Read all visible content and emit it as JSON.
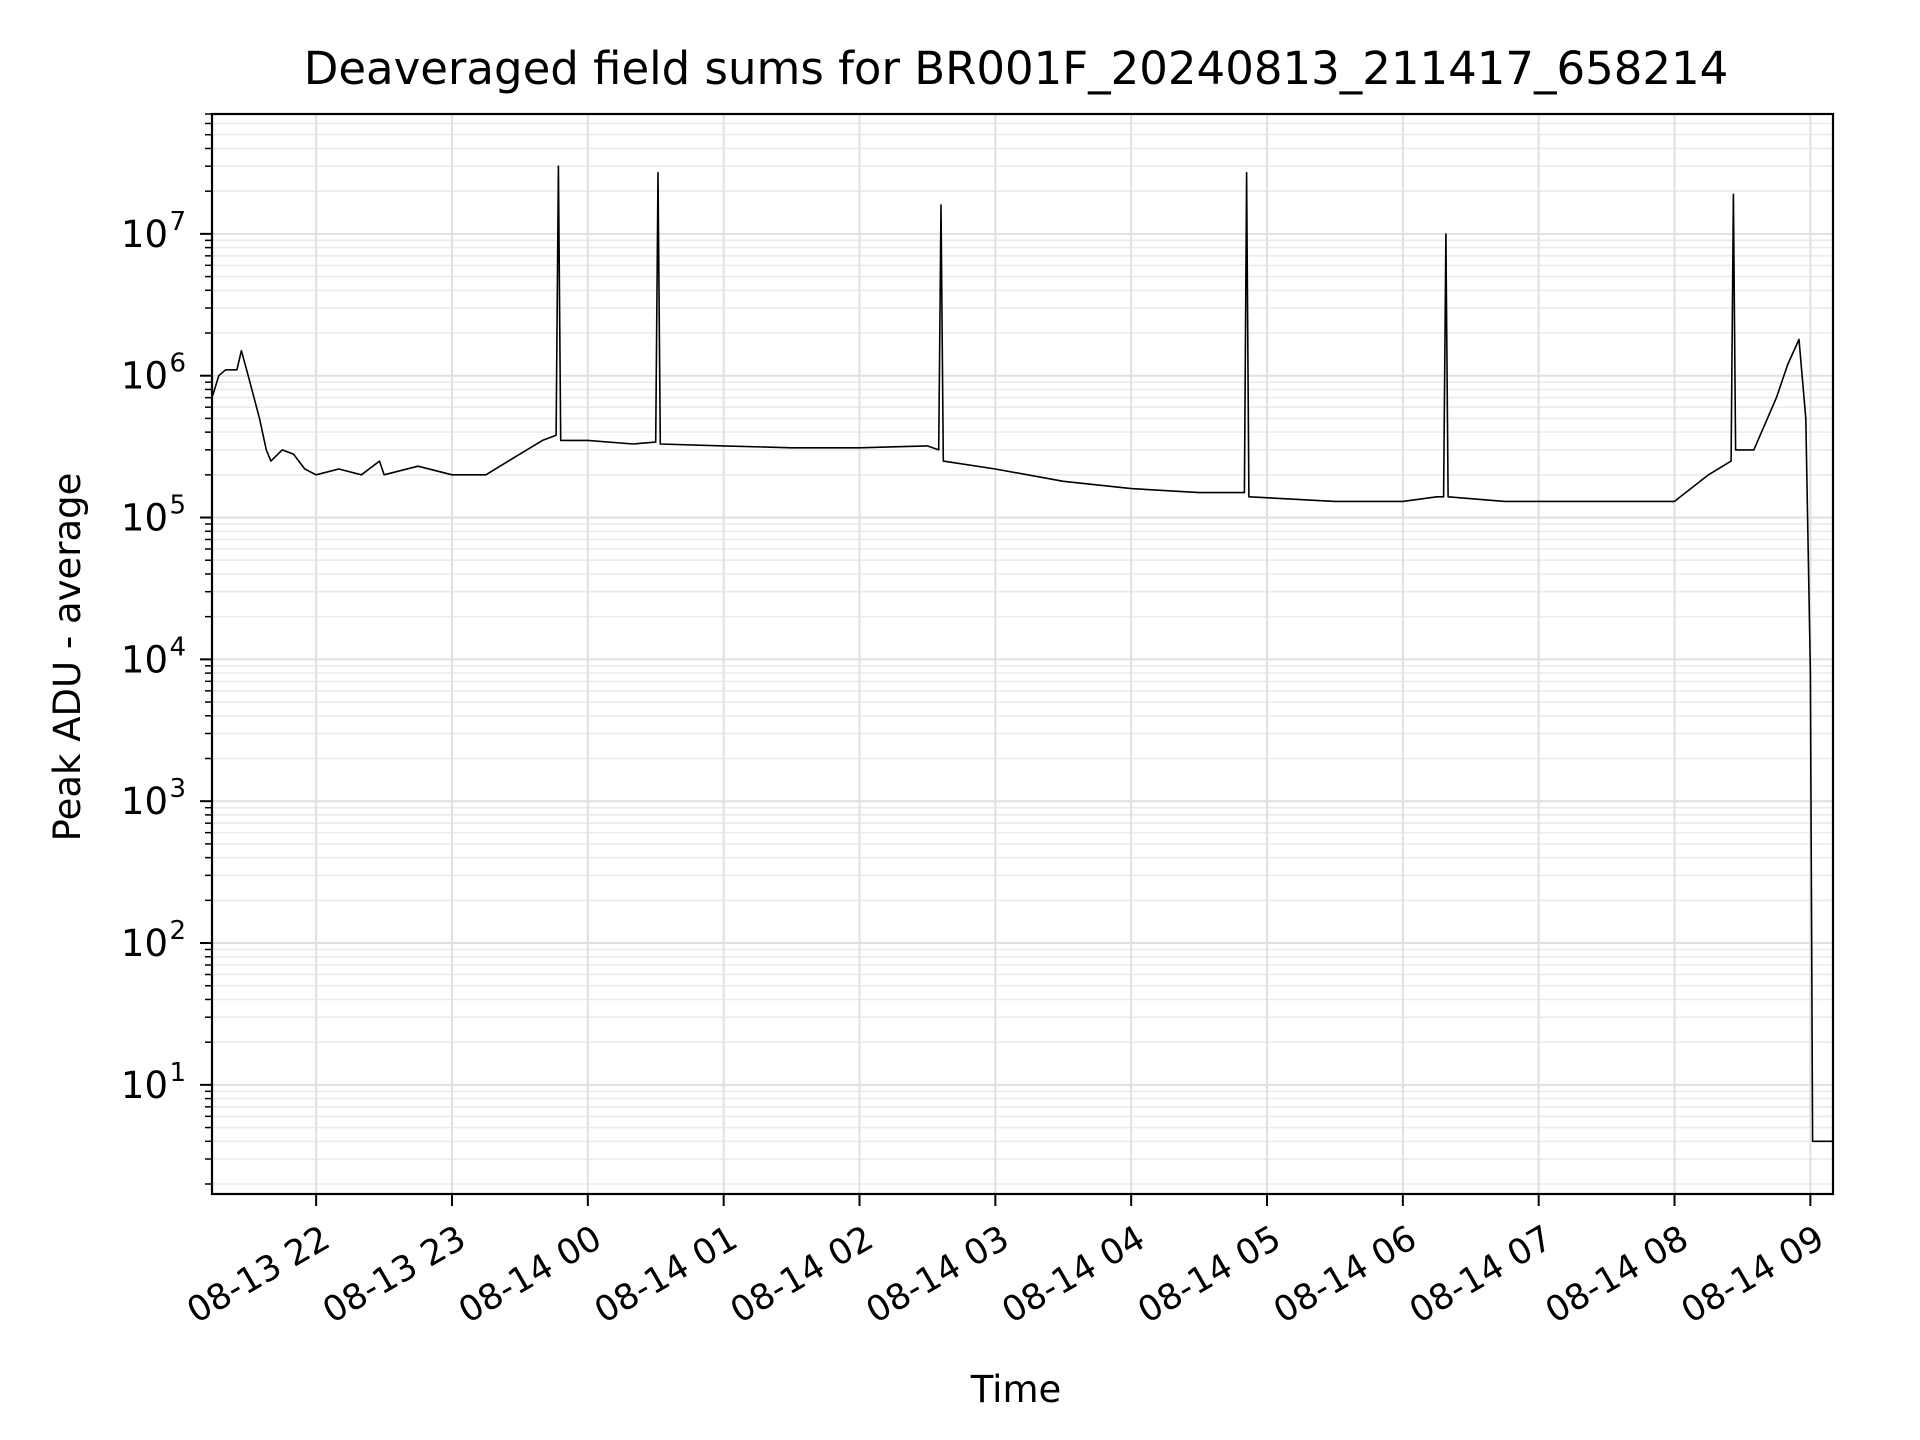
{
  "chart_data": {
    "type": "line",
    "title": "Deaveraged field sums for BR001F_20240813_211417_658214",
    "xlabel": "Time",
    "ylabel": "Peak ADU - average",
    "yscale": "log",
    "grid": true,
    "x_tick_labels": [
      "08-13 22",
      "08-13 23",
      "08-14 00",
      "08-14 01",
      "08-14 02",
      "08-14 03",
      "08-14 04",
      "08-14 05",
      "08-14 06",
      "08-14 07",
      "08-14 08",
      "08-14 09"
    ],
    "x_tick_times": [
      "2024-08-13 22:00",
      "2024-08-13 23:00",
      "2024-08-14 00:00",
      "2024-08-14 01:00",
      "2024-08-14 02:00",
      "2024-08-14 03:00",
      "2024-08-14 04:00",
      "2024-08-14 05:00",
      "2024-08-14 06:00",
      "2024-08-14 07:00",
      "2024-08-14 08:00",
      "2024-08-14 09:00"
    ],
    "xlim": [
      "2024-08-13 21:14",
      "2024-08-14 09:10"
    ],
    "y_tick_values": [
      10,
      100,
      1000,
      10000,
      100000,
      1000000,
      10000000
    ],
    "y_tick_bases": [
      "10",
      "10",
      "10",
      "10",
      "10",
      "10",
      "10"
    ],
    "y_tick_exponents": [
      "1",
      "2",
      "3",
      "4",
      "5",
      "6",
      "7"
    ],
    "ylim": [
      1.7,
      70000000
    ],
    "series": [
      {
        "color": "#000000",
        "x": [
          "2024-08-13 21:14",
          "2024-08-13 21:17",
          "2024-08-13 21:20",
          "2024-08-13 21:25",
          "2024-08-13 21:27",
          "2024-08-13 21:30",
          "2024-08-13 21:35",
          "2024-08-13 21:38",
          "2024-08-13 21:40",
          "2024-08-13 21:45",
          "2024-08-13 21:50",
          "2024-08-13 21:55",
          "2024-08-13 22:00",
          "2024-08-13 22:10",
          "2024-08-13 22:20",
          "2024-08-13 22:28",
          "2024-08-13 22:30",
          "2024-08-13 22:45",
          "2024-08-13 23:00",
          "2024-08-13 23:15",
          "2024-08-13 23:30",
          "2024-08-13 23:40",
          "2024-08-13 23:46",
          "2024-08-13 23:47",
          "2024-08-13 23:48",
          "2024-08-14 00:00",
          "2024-08-14 00:20",
          "2024-08-14 00:30",
          "2024-08-14 00:31",
          "2024-08-14 00:32",
          "2024-08-14 01:00",
          "2024-08-14 01:30",
          "2024-08-14 02:00",
          "2024-08-14 02:30",
          "2024-08-14 02:35",
          "2024-08-14 02:36",
          "2024-08-14 02:37",
          "2024-08-14 03:00",
          "2024-08-14 03:30",
          "2024-08-14 04:00",
          "2024-08-14 04:30",
          "2024-08-14 04:50",
          "2024-08-14 04:51",
          "2024-08-14 04:52",
          "2024-08-14 05:30",
          "2024-08-14 06:00",
          "2024-08-14 06:15",
          "2024-08-14 06:18",
          "2024-08-14 06:19",
          "2024-08-14 06:20",
          "2024-08-14 06:45",
          "2024-08-14 07:00",
          "2024-08-14 07:30",
          "2024-08-14 08:00",
          "2024-08-14 08:15",
          "2024-08-14 08:25",
          "2024-08-14 08:26",
          "2024-08-14 08:27",
          "2024-08-14 08:35",
          "2024-08-14 08:45",
          "2024-08-14 08:50",
          "2024-08-14 08:55",
          "2024-08-14 08:58",
          "2024-08-14 09:00",
          "2024-08-14 09:01",
          "2024-08-14 09:02",
          "2024-08-14 09:10"
        ],
        "y": [
          700000,
          1000000,
          1100000,
          1100000,
          1500000,
          1000000,
          500000,
          300000,
          250000,
          300000,
          280000,
          220000,
          200000,
          220000,
          200000,
          250000,
          200000,
          230000,
          200000,
          200000,
          280000,
          350000,
          380000,
          30000000,
          350000,
          350000,
          330000,
          340000,
          27000000,
          330000,
          320000,
          310000,
          310000,
          320000,
          300000,
          16000000,
          250000,
          220000,
          180000,
          160000,
          150000,
          150000,
          27000000,
          140000,
          130000,
          130000,
          140000,
          140000,
          10000000,
          140000,
          130000,
          130000,
          130000,
          130000,
          200000,
          250000,
          19000000,
          300000,
          300000,
          700000,
          1200000,
          1800000,
          500000,
          8000,
          4,
          4,
          4
        ]
      }
    ]
  }
}
